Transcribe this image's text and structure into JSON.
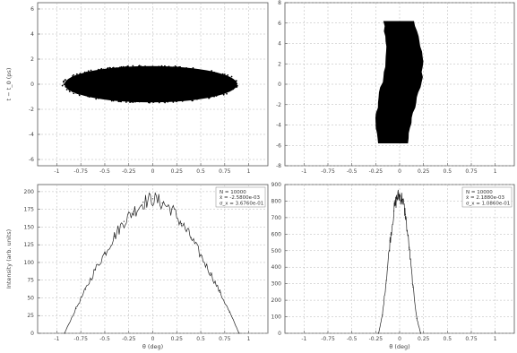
{
  "chart_data": [
    {
      "type": "scatter",
      "panel": "top-left",
      "xlim": [
        -1.2,
        1.2
      ],
      "ylim": [
        -6.5,
        6.5
      ],
      "xticks": [
        "-1",
        "-0.75",
        "-0.5",
        "-0.25",
        "0",
        "0.25",
        "0.5",
        "0.75",
        "1"
      ],
      "yticks": [
        "-6",
        "-4",
        "-2",
        "0",
        "2",
        "4",
        "6"
      ],
      "xlabel": "",
      "ylabel": "t − t_0 (ps)",
      "grid": true,
      "cloud": {
        "center": [
          -0.02,
          0.0
        ],
        "x_halfwidth": 0.9,
        "y_halfheight": 1.45
      }
    },
    {
      "type": "scatter",
      "panel": "top-right",
      "xlim": [
        -1.2,
        1.2
      ],
      "ylim": [
        -8,
        8
      ],
      "xticks": [
        "-1",
        "-0.75",
        "-0.5",
        "-0.25",
        "0",
        "0.25",
        "0.5",
        "0.75",
        "1"
      ],
      "yticks": [
        "-8",
        "-6",
        "-4",
        "-2",
        "0",
        "2",
        "4",
        "6",
        "8"
      ],
      "xlabel": "",
      "ylabel": "",
      "grid": true,
      "cloud": {
        "x_range": [
          -0.2,
          0.2
        ],
        "y_range": [
          -5.8,
          6.2
        ]
      }
    },
    {
      "type": "line",
      "panel": "bottom-left",
      "xlim": [
        -1.2,
        1.2
      ],
      "ylim": [
        0,
        210
      ],
      "xticks": [
        "-1",
        "-0.75",
        "-0.5",
        "-0.25",
        "0",
        "0.25",
        "0.5",
        "0.75",
        "1"
      ],
      "yticks": [
        "0",
        "25",
        "50",
        "75",
        "100",
        "125",
        "150",
        "175",
        "200"
      ],
      "xlabel": "θ (deg)",
      "ylabel": "Intensity (arb. units)",
      "grid": true,
      "x": [
        -0.92,
        -0.8,
        -0.7,
        -0.6,
        -0.5,
        -0.4,
        -0.3,
        -0.2,
        -0.1,
        0.0,
        0.1,
        0.2,
        0.3,
        0.4,
        0.5,
        0.6,
        0.7,
        0.8,
        0.9
      ],
      "y": [
        0,
        35,
        62,
        90,
        113,
        137,
        158,
        172,
        185,
        190,
        184,
        175,
        155,
        135,
        110,
        85,
        58,
        30,
        0
      ],
      "stats": [
        "N = 10000",
        "x̄ = -2.5800e-03",
        "σ_x = 3.6760e-01"
      ]
    },
    {
      "type": "line",
      "panel": "bottom-right",
      "xlim": [
        -1.2,
        1.2
      ],
      "ylim": [
        0,
        900
      ],
      "xticks": [
        "-1",
        "-0.75",
        "-0.5",
        "-0.25",
        "0",
        "0.25",
        "0.5",
        "0.75",
        "1"
      ],
      "yticks": [
        "0",
        "100",
        "200",
        "300",
        "400",
        "500",
        "600",
        "700",
        "800",
        "900"
      ],
      "xlabel": "θ (deg)",
      "ylabel": "",
      "grid": true,
      "x": [
        -0.22,
        -0.18,
        -0.14,
        -0.1,
        -0.06,
        -0.03,
        0.0,
        0.03,
        0.06,
        0.1,
        0.14,
        0.18,
        0.22
      ],
      "y": [
        0,
        110,
        320,
        560,
        740,
        820,
        835,
        810,
        720,
        520,
        280,
        90,
        0
      ],
      "stats": [
        "N = 10000",
        "x̄ = 2.1880e-03",
        "σ_x = 1.0860e-01"
      ]
    }
  ]
}
